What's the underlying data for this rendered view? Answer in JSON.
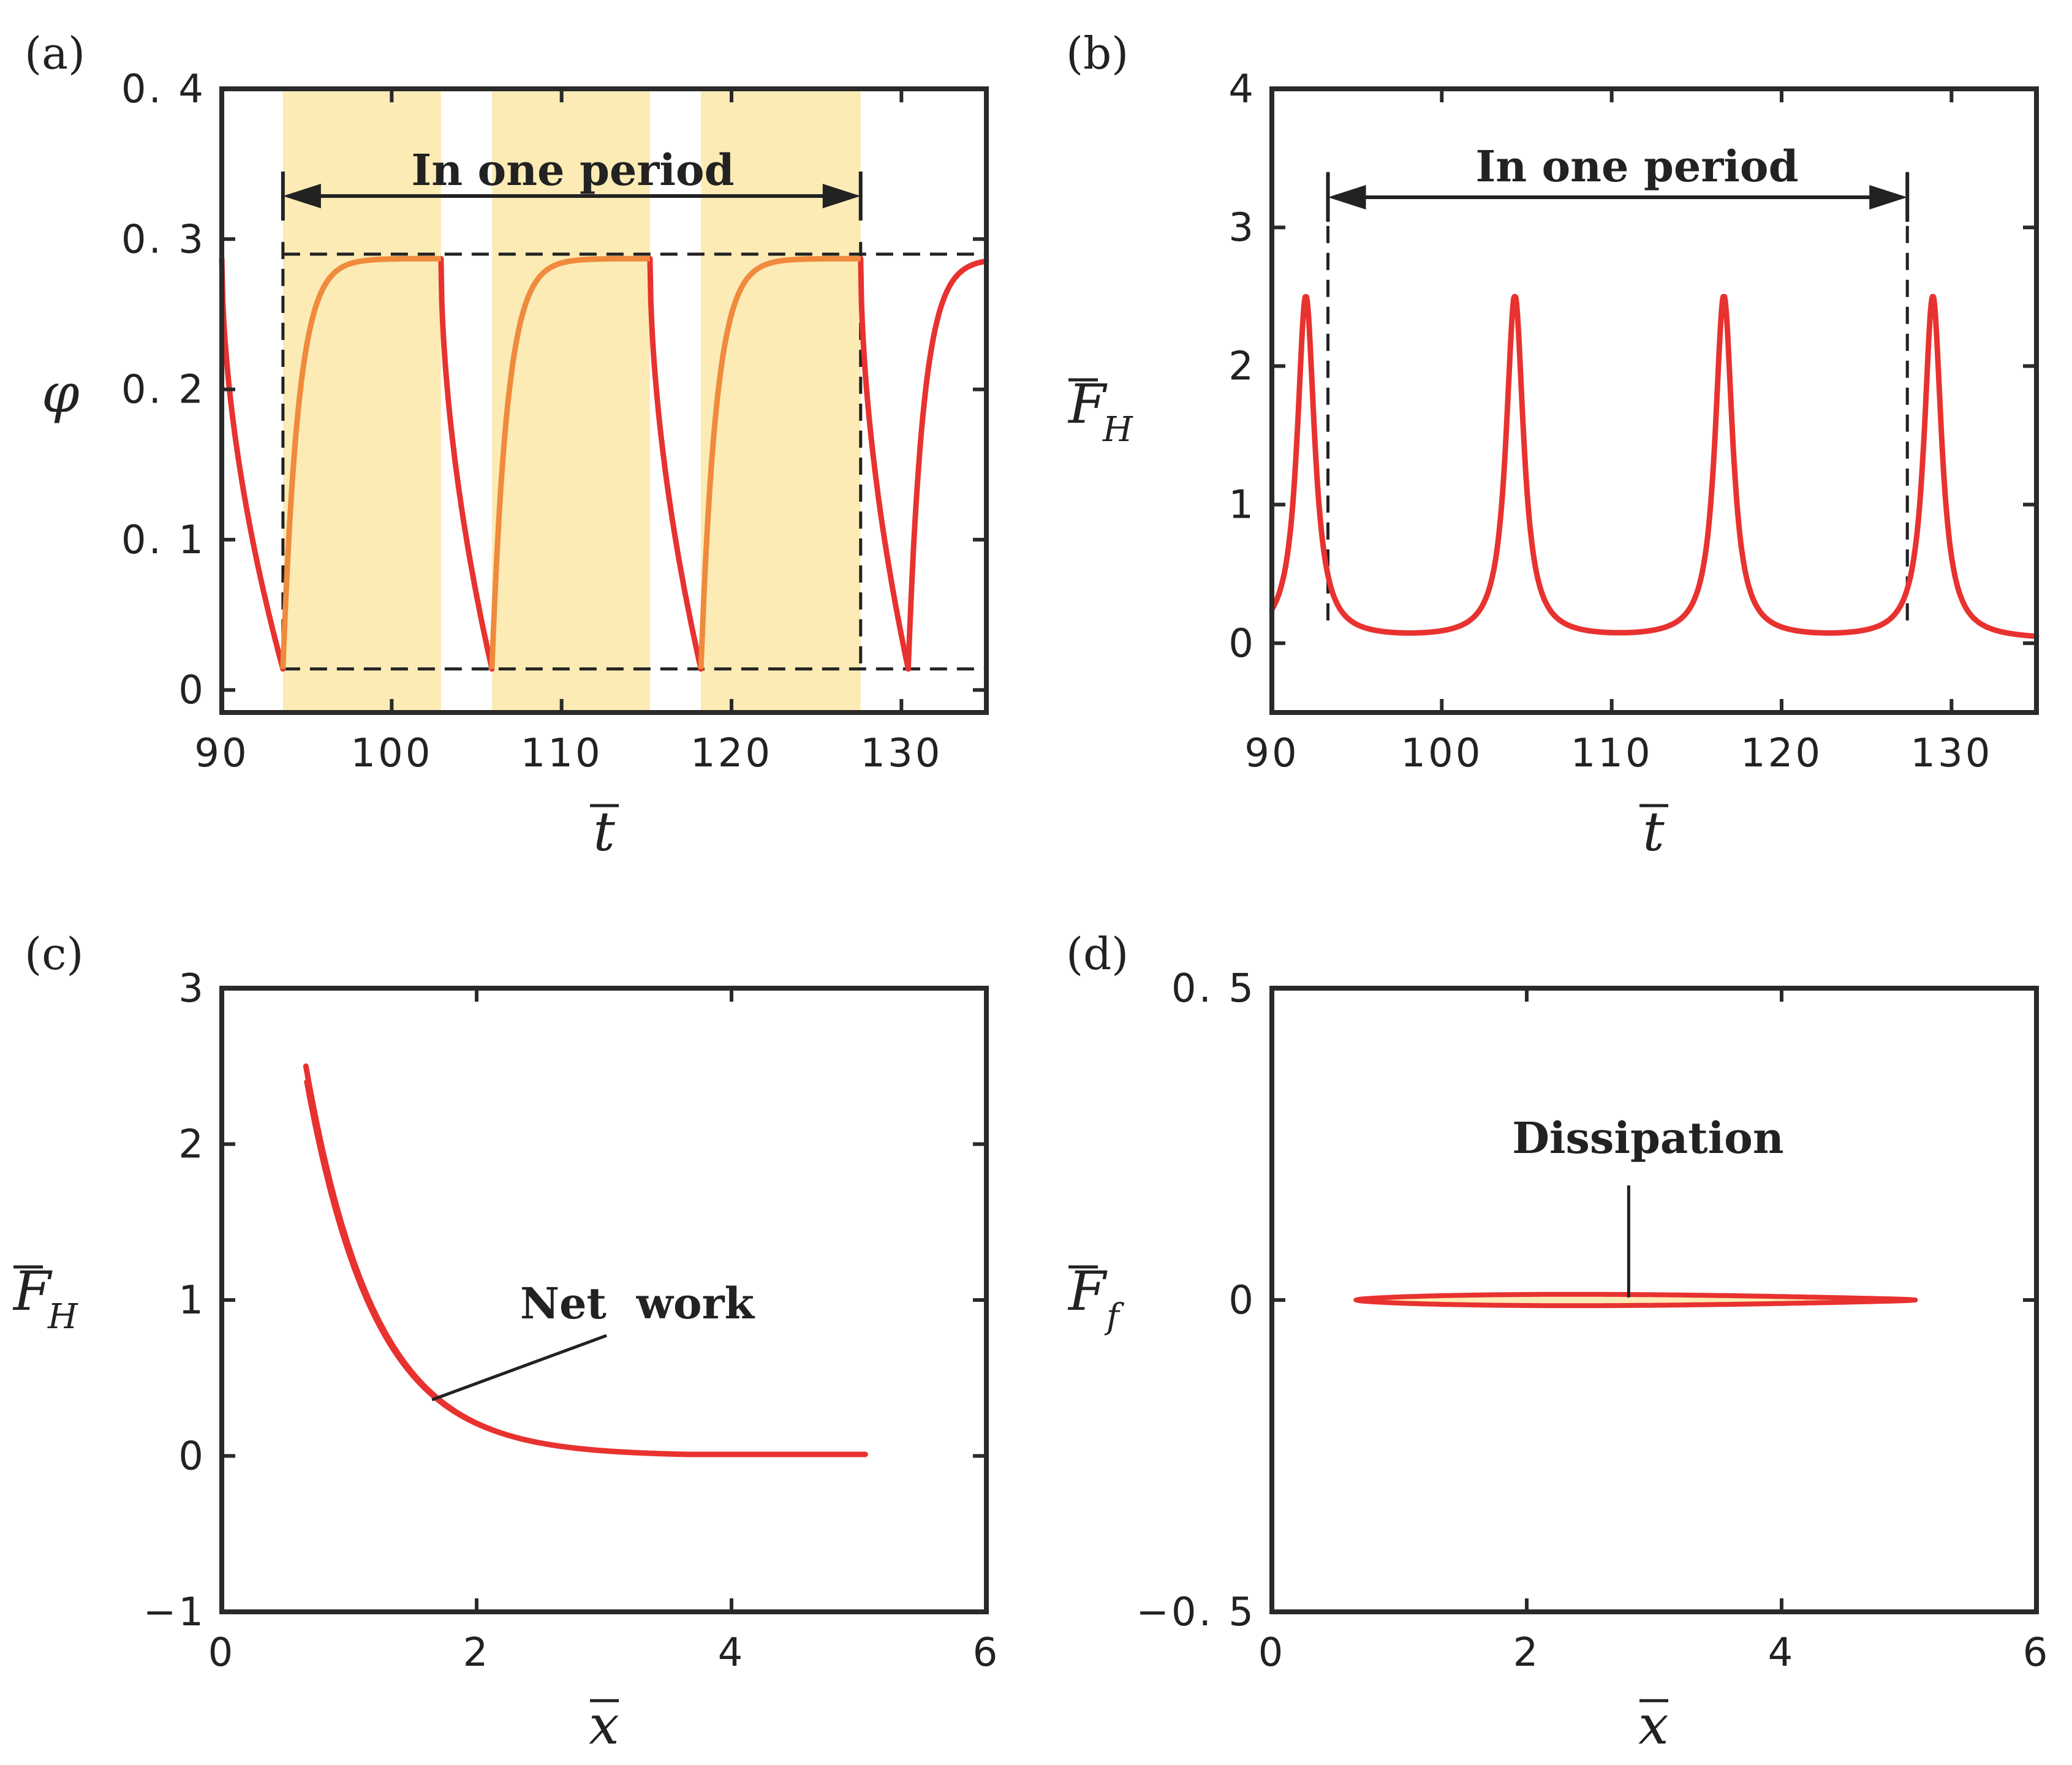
{
  "chart_data": [
    {
      "id": "a",
      "type": "line",
      "panel_label": "(a)",
      "xlabel": "t",
      "ylabel": "φ",
      "xlim": [
        90,
        135
      ],
      "ylim": [
        -0.015,
        0.4
      ],
      "xticks": [
        90,
        100,
        110,
        120,
        130
      ],
      "yticks": [
        0,
        0.1,
        0.2,
        0.3,
        0.4
      ],
      "ytick_labels": [
        "0",
        "0. 1",
        "0. 2",
        "0. 3",
        "0. 4"
      ],
      "phi_max": 0.287,
      "phi_min": 0.014,
      "drop_times": [
        90.0,
        102.9,
        115.2,
        127.6
      ],
      "rise_times": [
        93.6,
        105.9,
        118.2,
        130.4
      ],
      "shaded_intervals": [
        [
          93.6,
          102.9
        ],
        [
          105.9,
          115.2
        ],
        [
          118.2,
          127.6
        ]
      ],
      "dashed_levels": [
        0.29,
        0.014
      ],
      "period": [
        93.6,
        127.6
      ],
      "annotation": "In one period",
      "colors": {
        "curve": "#e8322f",
        "rise": "#f08a3c",
        "shade": "#fcebb5"
      }
    },
    {
      "id": "b",
      "type": "line",
      "panel_label": "(b)",
      "xlabel": "t",
      "ylabel": "F",
      "ylabel_sub": "H",
      "xlim": [
        90,
        135
      ],
      "ylim": [
        -0.5,
        4
      ],
      "xticks": [
        90,
        100,
        110,
        120,
        130
      ],
      "yticks": [
        0,
        1,
        2,
        3,
        4
      ],
      "peak_times": [
        92.0,
        104.3,
        116.6,
        128.9
      ],
      "peak_value": 2.5,
      "baseline": 0.02,
      "period": [
        93.3,
        127.4
      ],
      "annotation": "In one period",
      "colors": {
        "curve": "#e8322f"
      }
    },
    {
      "id": "c",
      "type": "line",
      "panel_label": "(c)",
      "xlabel": "x",
      "ylabel": "F",
      "ylabel_sub": "H",
      "xlim": [
        0,
        6
      ],
      "ylim": [
        -1,
        3
      ],
      "xticks": [
        0,
        2,
        4,
        6
      ],
      "yticks": [
        -1,
        0,
        1,
        2,
        3
      ],
      "ytick_labels": [
        "−1",
        "0",
        "1",
        "2",
        "3"
      ],
      "x_range": [
        0.66,
        5.05
      ],
      "start_value": 2.5,
      "end_value": 0.01,
      "annotation": "Net  work",
      "annotation_point": [
        1.65,
        0.36
      ],
      "colors": {
        "curve": "#e8322f"
      }
    },
    {
      "id": "d",
      "type": "line",
      "panel_label": "(d)",
      "xlabel": "x",
      "ylabel": "F",
      "ylabel_sub": "f",
      "xlim": [
        0,
        6
      ],
      "ylim": [
        -0.5,
        0.5
      ],
      "xticks": [
        0,
        2,
        4,
        6
      ],
      "yticks": [
        -0.5,
        0,
        0.5
      ],
      "ytick_labels": [
        "−0. 5",
        "0",
        "0. 5"
      ],
      "x_range": [
        0.66,
        5.05
      ],
      "loop_half_height": 0.012,
      "annotation": "Dissipation",
      "annotation_point": [
        2.8,
        0.004
      ],
      "colors": {
        "curve": "#e8322f",
        "fill": "#fcebb5"
      }
    }
  ]
}
